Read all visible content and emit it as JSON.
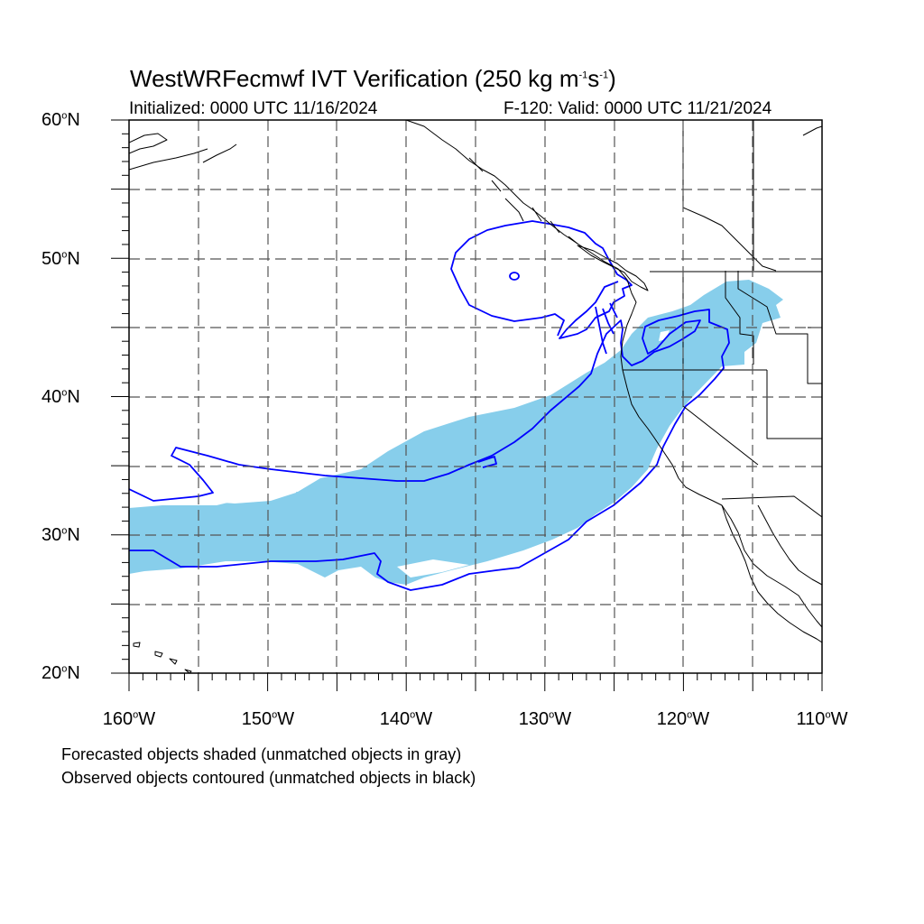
{
  "title": {
    "main": "WestWRFecmwf IVT Verification (250 kg m",
    "exp1": "-1",
    "s": "s",
    "exp2": "-1",
    "close": ")"
  },
  "subtitle_left": "Initialized: 0000 UTC 11/16/2024",
  "subtitle_right": "F-120: Valid: 0000 UTC 11/21/2024",
  "lat_labels": [
    {
      "deg": "60",
      "suffix": "N"
    },
    {
      "deg": "50",
      "suffix": "N"
    },
    {
      "deg": "40",
      "suffix": "N"
    },
    {
      "deg": "30",
      "suffix": "N"
    },
    {
      "deg": "20",
      "suffix": "N"
    }
  ],
  "lon_labels": [
    {
      "deg": "160",
      "suffix": "W"
    },
    {
      "deg": "150",
      "suffix": "W"
    },
    {
      "deg": "140",
      "suffix": "W"
    },
    {
      "deg": "130",
      "suffix": "W"
    },
    {
      "deg": "120",
      "suffix": "W"
    },
    {
      "deg": "110",
      "suffix": "W"
    }
  ],
  "footer": {
    "line1": "Forecasted objects shaded (unmatched objects in gray)",
    "line2": "Observed objects contoured (unmatched objects in black)"
  },
  "colors": {
    "forecast_fill": "#87ceeb",
    "observed_contour": "#0000ff",
    "coastline": "#000000",
    "grid": "#555555"
  }
}
